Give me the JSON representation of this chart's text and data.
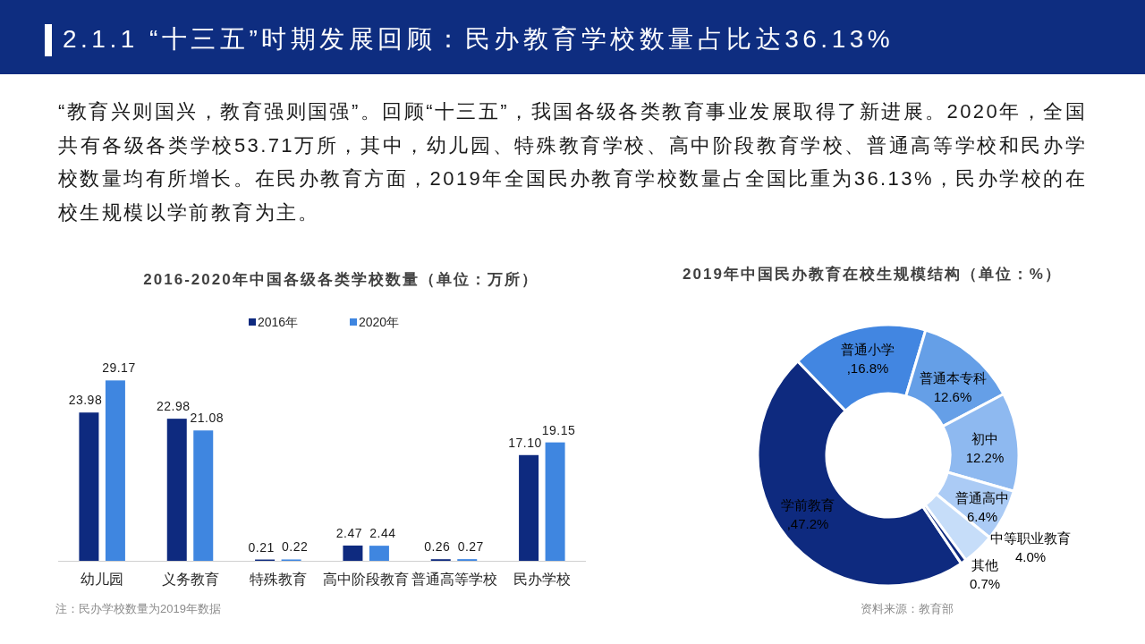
{
  "chart_data": [
    {
      "type": "other",
      "title": "2.1.1 “十三五”时期发展回顾：民办教育学校数量占比达36.13%",
      "subtitle": "“教育兴则国兴，教育强则国强”。回顾“十三五”，我国各级各类教育事业发展取得了新进展。2020年，全国共有各级各类学校53.71万所，其中，幼儿园、特殊教育学校、高中阶段教育学校、普通高等学校和民办学校数量均有所增长。在民办教育方面，2019年全国民办教育学校数量占全国比重为36.13%，民办学校的在校生规模以学前教育为主。"
    },
    {
      "type": "bar",
      "title": "2016-2020年中国各级各类学校数量（单位：万所）",
      "categories": [
        "幼儿园",
        "义务教育",
        "特殊教育",
        "高中阶段教育",
        "普通高等学校",
        "民办学校"
      ],
      "series": [
        {
          "name": "2016年",
          "color": "#0e2a7f",
          "values": [
            23.98,
            22.98,
            0.21,
            2.47,
            0.26,
            17.1
          ],
          "value_labels": [
            "23.98",
            "22.98",
            "0.21",
            "2.47",
            "0.26",
            "17.10"
          ]
        },
        {
          "name": "2020年",
          "color": "#3f86e0",
          "values": [
            29.17,
            21.08,
            0.22,
            2.44,
            0.27,
            19.15
          ],
          "value_labels": [
            "29.17",
            "21.08",
            "0.22",
            "2.44",
            "0.27",
            "19.15"
          ]
        }
      ],
      "legend": "top",
      "annotations": [
        "注：民办学校数量为2019年数据"
      ]
    },
    {
      "type": "donut",
      "title": "2019年中国民办教育在校生规模结构（单位：%）",
      "categories": [
        "学前教育",
        "普通小学",
        "普通本专科",
        "初中",
        "普通高中",
        "中等职业教育",
        "其他"
      ],
      "values": [
        47.2,
        16.8,
        12.6,
        12.2,
        6.4,
        4.0,
        0.7
      ],
      "colors": [
        "#0e2a7f",
        "#4286e1",
        "#659fe7",
        "#8eb9f0",
        "#abcbf5",
        "#c6ddf9",
        "#0e2a7f"
      ],
      "value_labels": [
        ",47.2%",
        ",16.8%",
        "12.6%",
        "12.2%",
        "6.4%",
        "4.0%",
        "0.7%"
      ],
      "annotations": [
        "资料来源：教育部"
      ]
    }
  ]
}
